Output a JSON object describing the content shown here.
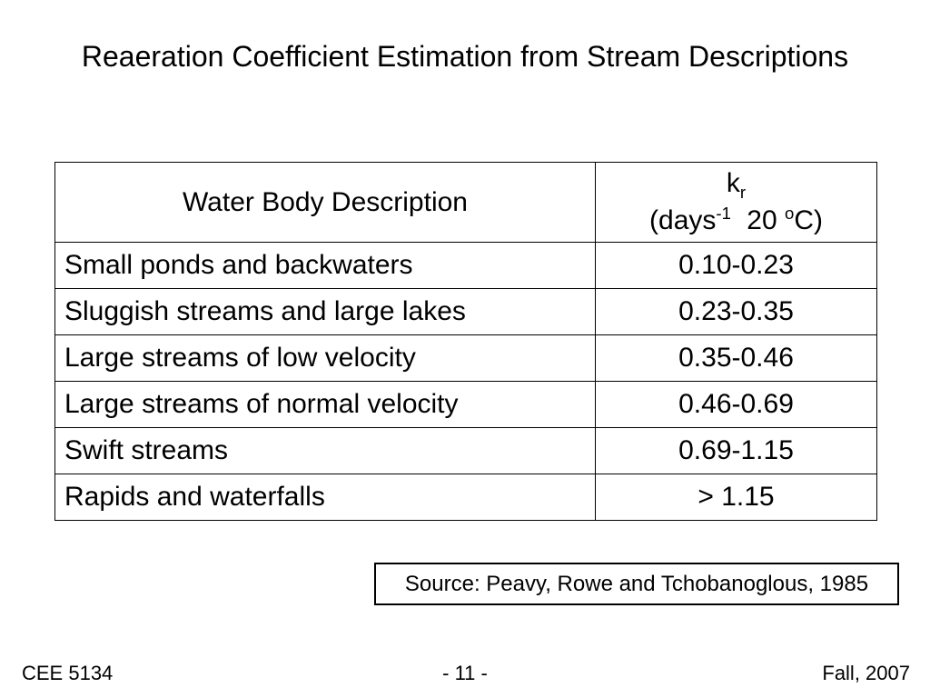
{
  "slide": {
    "title": "Reaeration Coefficient Estimation from Stream Descriptions"
  },
  "table": {
    "header": {
      "col1": "Water Body Description",
      "col2": {
        "symbol": "k",
        "symbol_sub": "r",
        "units_open": "(days",
        "units_exp": "-1",
        "units_mid": " 20 ",
        "units_deg": "o",
        "units_close": "C)"
      }
    },
    "rows": [
      {
        "description": "Small ponds and backwaters",
        "kr": "0.10-0.23"
      },
      {
        "description": "Sluggish streams and large lakes",
        "kr": "0.23-0.35"
      },
      {
        "description": "Large streams of low velocity",
        "kr": "0.35-0.46"
      },
      {
        "description": "Large streams of normal velocity",
        "kr": "0.46-0.69"
      },
      {
        "description": "Swift streams",
        "kr": "0.69-1.15"
      },
      {
        "description": "Rapids and waterfalls",
        "kr": "> 1.15"
      }
    ]
  },
  "source": {
    "text": "Source: Peavy, Rowe and Tchobanoglous, 1985"
  },
  "footer": {
    "left": "CEE 5134",
    "center": "- 11 -",
    "right": "Fall, 2007"
  }
}
